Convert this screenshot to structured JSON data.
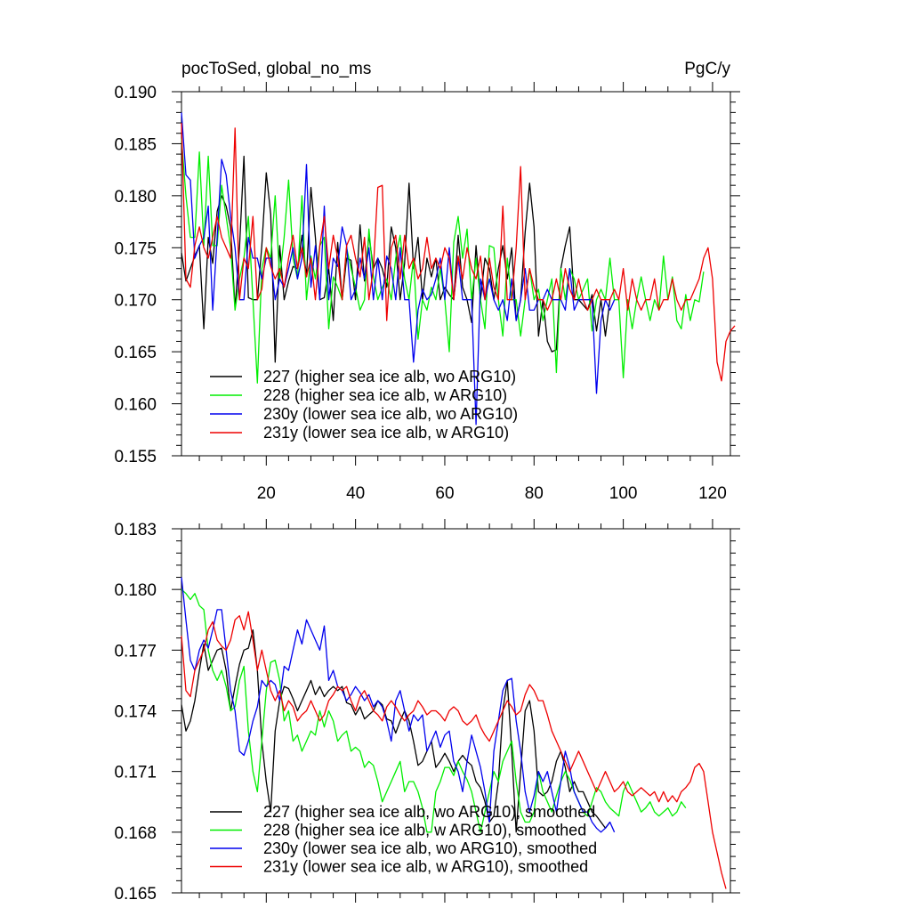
{
  "chart_data": [
    {
      "type": "line",
      "title": "pocToSed, global_no_ms",
      "unit_label": "PgC/y",
      "xlim": [
        1,
        124
      ],
      "ylim": [
        0.155,
        0.19
      ],
      "x_ticks": [
        20,
        40,
        60,
        80,
        100,
        120
      ],
      "y_ticks": [
        "0.155",
        "0.160",
        "0.165",
        "0.170",
        "0.175",
        "0.180",
        "0.185",
        "0.190"
      ],
      "legend_position": "bottom-left",
      "series": [
        {
          "name": "227 (higher sea ice alb, wo ARG10)",
          "color": "#000000",
          "values": [
            0.1745,
            0.1718,
            0.173,
            0.1742,
            0.1752,
            0.1672,
            0.176,
            0.1735,
            0.1785,
            0.18,
            0.179,
            0.177,
            0.1692,
            0.175,
            0.1838,
            0.1702,
            0.17,
            0.17,
            0.1752,
            0.1822,
            0.1782,
            0.164,
            0.1752,
            0.17,
            0.1718,
            0.1732,
            0.173,
            0.1762,
            0.1722,
            0.1808,
            0.176,
            0.17,
            0.1702,
            0.173,
            0.168,
            0.1755,
            0.17,
            0.174,
            0.1738,
            0.17,
            0.1772,
            0.1718,
            0.1762,
            0.173,
            0.174,
            0.173,
            0.1712,
            0.177,
            0.175,
            0.17,
            0.1735,
            0.1812,
            0.173,
            0.176,
            0.17,
            0.174,
            0.1722,
            0.174,
            0.17,
            0.1712,
            0.1705,
            0.17,
            0.1762,
            0.1712,
            0.17,
            0.1678,
            0.1752,
            0.17,
            0.174,
            0.173,
            0.17,
            0.173,
            0.1752,
            0.172,
            0.175,
            0.168,
            0.17,
            0.1765,
            0.1812,
            0.177,
            0.1665,
            0.17,
            0.166,
            0.165,
            0.1652,
            0.173,
            0.1752,
            0.177,
            0.17,
            0.17,
            0.1695,
            0.169,
            0.1705,
            0.167,
            0.17,
            0.1665,
            0.17
          ]
        },
        {
          "name": "228 (higher sea ice alb, w ARG10)",
          "color": "#00ee00",
          "values": [
            0.1855,
            0.18,
            0.176,
            0.176,
            0.1842,
            0.1752,
            0.1838,
            0.1752,
            0.1752,
            0.181,
            0.178,
            0.175,
            0.169,
            0.172,
            0.174,
            0.178,
            0.17,
            0.162,
            0.173,
            0.175,
            0.174,
            0.18,
            0.172,
            0.176,
            0.1815,
            0.174,
            0.172,
            0.18,
            0.17,
            0.1742,
            0.172,
            0.1752,
            0.176,
            0.1672,
            0.1722,
            0.1712,
            0.17,
            0.175,
            0.173,
            0.1712,
            0.169,
            0.17,
            0.1768,
            0.1722,
            0.17,
            0.1712,
            0.172,
            0.17,
            0.174,
            0.1762,
            0.172,
            0.17,
            0.174,
            0.1662,
            0.17,
            0.169,
            0.1712,
            0.17,
            0.173,
            0.17,
            0.165,
            0.1755,
            0.178,
            0.174,
            0.1768,
            0.17,
            0.174,
            0.17,
            0.1672,
            0.1752,
            0.175,
            0.17,
            0.1665,
            0.174,
            0.17,
            0.17,
            0.1665,
            0.17,
            0.173,
            0.17,
            0.171,
            0.168,
            0.17,
            0.172,
            0.163,
            0.173,
            0.17,
            0.173,
            0.172,
            0.17,
            0.171,
            0.172,
            0.167,
            0.17,
            0.171,
            0.17,
            0.174,
            0.17,
            0.17,
            0.1625,
            0.17,
            0.1672,
            0.17,
            0.1722,
            0.17,
            0.168,
            0.17,
            0.169,
            0.1742,
            0.17,
            0.1722,
            0.168,
            0.1672,
            0.1705,
            0.168,
            0.17,
            0.1698,
            0.1727
          ]
        },
        {
          "name": "230y (lower sea ice alb, wo ARG10)",
          "color": "#0000ee",
          "values": [
            0.188,
            0.182,
            0.1815,
            0.174,
            0.1752,
            0.176,
            0.179,
            0.169,
            0.176,
            0.1835,
            0.182,
            0.178,
            0.175,
            0.17,
            0.17,
            0.176,
            0.174,
            0.174,
            0.172,
            0.174,
            0.174,
            0.17,
            0.172,
            0.1712,
            0.173,
            0.175,
            0.172,
            0.174,
            0.183,
            0.1712,
            0.1752,
            0.17,
            0.179,
            0.17,
            0.174,
            0.1732,
            0.177,
            0.1752,
            0.17,
            0.171,
            0.174,
            0.172,
            0.175,
            0.17,
            0.174,
            0.17,
            0.1742,
            0.173,
            0.17,
            0.175,
            0.17,
            0.17,
            0.164,
            0.169,
            0.171,
            0.17,
            0.1705,
            0.172,
            0.174,
            0.17,
            0.175,
            0.17,
            0.174,
            0.17,
            0.17,
            0.17,
            0.158,
            0.172,
            0.17,
            0.172,
            0.17,
            0.169,
            0.17,
            0.168,
            0.172,
            0.168,
            0.17,
            0.173,
            0.169,
            0.169,
            0.17,
            0.17,
            0.171,
            0.17,
            0.17,
            0.17,
            0.169,
            0.173,
            0.169,
            0.17,
            0.17,
            0.17,
            0.17,
            0.161,
            0.168,
            0.17,
            0.169,
            0.17
          ]
        },
        {
          "name": "231y (lower sea ice alb, w ARG10)",
          "color": "#ee0000",
          "values": [
            0.187,
            0.172,
            0.1712,
            0.1752,
            0.177,
            0.175,
            0.174,
            0.176,
            0.178,
            0.176,
            0.175,
            0.174,
            0.1865,
            0.17,
            0.174,
            0.173,
            0.178,
            0.17,
            0.171,
            0.175,
            0.1732,
            0.172,
            0.173,
            0.1712,
            0.174,
            0.1762,
            0.173,
            0.175,
            0.1722,
            0.174,
            0.17,
            0.1752,
            0.178,
            0.173,
            0.1762,
            0.174,
            0.17,
            0.1752,
            0.1762,
            0.174,
            0.1722,
            0.176,
            0.17,
            0.173,
            0.1808,
            0.181,
            0.168,
            0.175,
            0.1762,
            0.172,
            0.1762,
            0.173,
            0.174,
            0.172,
            0.173,
            0.176,
            0.173,
            0.174,
            0.173,
            0.175,
            0.174,
            0.17,
            0.1742,
            0.172,
            0.175,
            0.173,
            0.172,
            0.1742,
            0.17,
            0.174,
            0.1712,
            0.17,
            0.179,
            0.17,
            0.17,
            0.175,
            0.1828,
            0.17,
            0.173,
            0.1712,
            0.17,
            0.17,
            0.169,
            0.17,
            0.172,
            0.17,
            0.173,
            0.171,
            0.17,
            0.172,
            0.17,
            0.169,
            0.17,
            0.171,
            0.17,
            0.17,
            0.17,
            0.171,
            0.17,
            0.173,
            0.169,
            0.172,
            0.17,
            0.169,
            0.17,
            0.17,
            0.172,
            0.169,
            0.17,
            0.17,
            0.172,
            0.17,
            0.169,
            0.17,
            0.17,
            0.171,
            0.172,
            0.174,
            0.175,
            0.172,
            0.164,
            0.1622,
            0.166,
            0.167,
            0.1675
          ]
        }
      ]
    },
    {
      "type": "line",
      "xlim": [
        1,
        124
      ],
      "ylim": [
        0.165,
        0.183
      ],
      "x_ticks": [
        20,
        40,
        60,
        80,
        100,
        120
      ],
      "y_ticks": [
        "0.165",
        "0.168",
        "0.171",
        "0.174",
        "0.177",
        "0.180",
        "0.183"
      ],
      "legend_position": "bottom-left",
      "series": [
        {
          "name": "227 (higher sea ice alb, wo ARG10), smoothed",
          "color": "#000000",
          "values": [
            0.1743,
            0.173,
            0.1735,
            0.1745,
            0.176,
            0.1773,
            0.176,
            0.1765,
            0.177,
            0.1771,
            0.176,
            0.174,
            0.1752,
            0.1763,
            0.177,
            0.1771,
            0.178,
            0.176,
            0.1725,
            0.1705,
            0.169,
            0.173,
            0.1745,
            0.1752,
            0.1751,
            0.1746,
            0.174,
            0.1745,
            0.175,
            0.1755,
            0.1748,
            0.1752,
            0.1747,
            0.175,
            0.1752,
            0.175,
            0.1752,
            0.1744,
            0.1743,
            0.1738,
            0.1742,
            0.1736,
            0.1738,
            0.174,
            0.1745,
            0.1743,
            0.1736,
            0.1735,
            0.1729,
            0.1735,
            0.174,
            0.1735,
            0.1725,
            0.1713,
            0.1715,
            0.172,
            0.1725,
            0.1712,
            0.1715,
            0.1719,
            0.1715,
            0.171,
            0.1715,
            0.1718,
            0.1715,
            0.1713,
            0.1705,
            0.1702,
            0.1695,
            0.1685,
            0.1688,
            0.1705,
            0.174,
            0.1755,
            0.172,
            0.168,
            0.171,
            0.174,
            0.1745,
            0.173,
            0.17,
            0.1698,
            0.17,
            0.1705,
            0.1715,
            0.172,
            0.1712,
            0.17,
            0.1705,
            0.17,
            0.17,
            0.1695,
            0.169,
            0.1688,
            0.1685,
            0.1682,
            0.1685
          ]
        },
        {
          "name": "228 (higher sea ice alb, w ARG10), smoothed",
          "color": "#00ee00",
          "values": [
            0.18,
            0.1798,
            0.1795,
            0.1798,
            0.1792,
            0.179,
            0.177,
            0.176,
            0.1755,
            0.176,
            0.1752,
            0.174,
            0.1742,
            0.1755,
            0.1762,
            0.173,
            0.171,
            0.17,
            0.1725,
            0.175,
            0.1764,
            0.1765,
            0.1755,
            0.1735,
            0.174,
            0.1725,
            0.1728,
            0.172,
            0.1725,
            0.173,
            0.1728,
            0.174,
            0.1732,
            0.174,
            0.1735,
            0.1725,
            0.1728,
            0.173,
            0.172,
            0.1722,
            0.172,
            0.1712,
            0.1715,
            0.1713,
            0.1705,
            0.1695,
            0.17,
            0.1705,
            0.171,
            0.1715,
            0.17,
            0.1705,
            0.1705,
            0.17,
            0.1692,
            0.168,
            0.168,
            0.17,
            0.1705,
            0.1712,
            0.1712,
            0.1708,
            0.1715,
            0.171,
            0.1706,
            0.17,
            0.169,
            0.168,
            0.169,
            0.17,
            0.171,
            0.1705,
            0.1715,
            0.172,
            0.1725,
            0.1705,
            0.169,
            0.1685,
            0.1685,
            0.169,
            0.171,
            0.17,
            0.1695,
            0.169,
            0.1698,
            0.1705,
            0.171,
            0.1706,
            0.17,
            0.1695,
            0.169,
            0.1688,
            0.1695,
            0.1702,
            0.17,
            0.1695,
            0.1692,
            0.169,
            0.1688,
            0.17,
            0.1705,
            0.17,
            0.1695,
            0.169,
            0.1692,
            0.1695,
            0.169,
            0.1688,
            0.169,
            0.1692,
            0.1688,
            0.169,
            0.1695,
            0.1692
          ]
        },
        {
          "name": "230y (lower sea ice alb, wo ARG10), smoothed",
          "color": "#0000ee",
          "values": [
            0.1806,
            0.1785,
            0.1765,
            0.176,
            0.177,
            0.1775,
            0.1771,
            0.178,
            0.179,
            0.179,
            0.177,
            0.175,
            0.174,
            0.172,
            0.1718,
            0.1725,
            0.1735,
            0.1742,
            0.1755,
            0.1752,
            0.1755,
            0.1753,
            0.1745,
            0.1762,
            0.176,
            0.177,
            0.178,
            0.1773,
            0.1785,
            0.178,
            0.1775,
            0.177,
            0.1782,
            0.1755,
            0.176,
            0.1752,
            0.175,
            0.1745,
            0.1748,
            0.1752,
            0.1749,
            0.1745,
            0.1748,
            0.1742,
            0.1745,
            0.1742,
            0.1735,
            0.1725,
            0.1745,
            0.175,
            0.174,
            0.173,
            0.1738,
            0.1735,
            0.1738,
            0.172,
            0.1725,
            0.173,
            0.1722,
            0.1728,
            0.173,
            0.1715,
            0.171,
            0.17,
            0.1715,
            0.1728,
            0.172,
            0.1712,
            0.17,
            0.1685,
            0.172,
            0.1735,
            0.175,
            0.1755,
            0.1756,
            0.1735,
            0.172,
            0.17,
            0.169,
            0.1698,
            0.171,
            0.1705,
            0.171,
            0.17,
            0.169,
            0.1705,
            0.172,
            0.1712,
            0.17,
            0.1695,
            0.169,
            0.169,
            0.1685,
            0.1682,
            0.168,
            0.1682,
            0.1685,
            0.168
          ]
        },
        {
          "name": "231y (lower sea ice alb, w ARG10), smoothed",
          "color": "#ee0000",
          "values": [
            0.1777,
            0.175,
            0.1747,
            0.176,
            0.1765,
            0.177,
            0.178,
            0.1784,
            0.1775,
            0.1772,
            0.177,
            0.1775,
            0.1785,
            0.1787,
            0.178,
            0.1789,
            0.1775,
            0.176,
            0.177,
            0.176,
            0.175,
            0.1745,
            0.175,
            0.174,
            0.1745,
            0.1742,
            0.1735,
            0.1738,
            0.174,
            0.1745,
            0.174,
            0.1735,
            0.1738,
            0.1745,
            0.1748,
            0.1752,
            0.175,
            0.1752,
            0.1745,
            0.174,
            0.1747,
            0.175,
            0.1745,
            0.174,
            0.1738,
            0.1735,
            0.1742,
            0.1745,
            0.1742,
            0.1738,
            0.1735,
            0.1738,
            0.174,
            0.1745,
            0.1742,
            0.1738,
            0.174,
            0.174,
            0.1738,
            0.1735,
            0.174,
            0.1742,
            0.174,
            0.1735,
            0.1733,
            0.1735,
            0.1738,
            0.1732,
            0.1728,
            0.1725,
            0.173,
            0.1735,
            0.174,
            0.1745,
            0.1742,
            0.1738,
            0.174,
            0.1748,
            0.1753,
            0.175,
            0.1745,
            0.1745,
            0.1738,
            0.173,
            0.1725,
            0.172,
            0.1715,
            0.171,
            0.1715,
            0.172,
            0.1715,
            0.171,
            0.1705,
            0.17,
            0.1705,
            0.171,
            0.1705,
            0.17,
            0.1702,
            0.1705,
            0.17,
            0.1698,
            0.17,
            0.1702,
            0.17,
            0.1698,
            0.17,
            0.1695,
            0.17,
            0.1695,
            0.1698,
            0.1695,
            0.17,
            0.1702,
            0.1705,
            0.1712,
            0.1714,
            0.171,
            0.1695,
            0.168,
            0.167,
            0.166,
            0.1652
          ]
        }
      ]
    }
  ]
}
